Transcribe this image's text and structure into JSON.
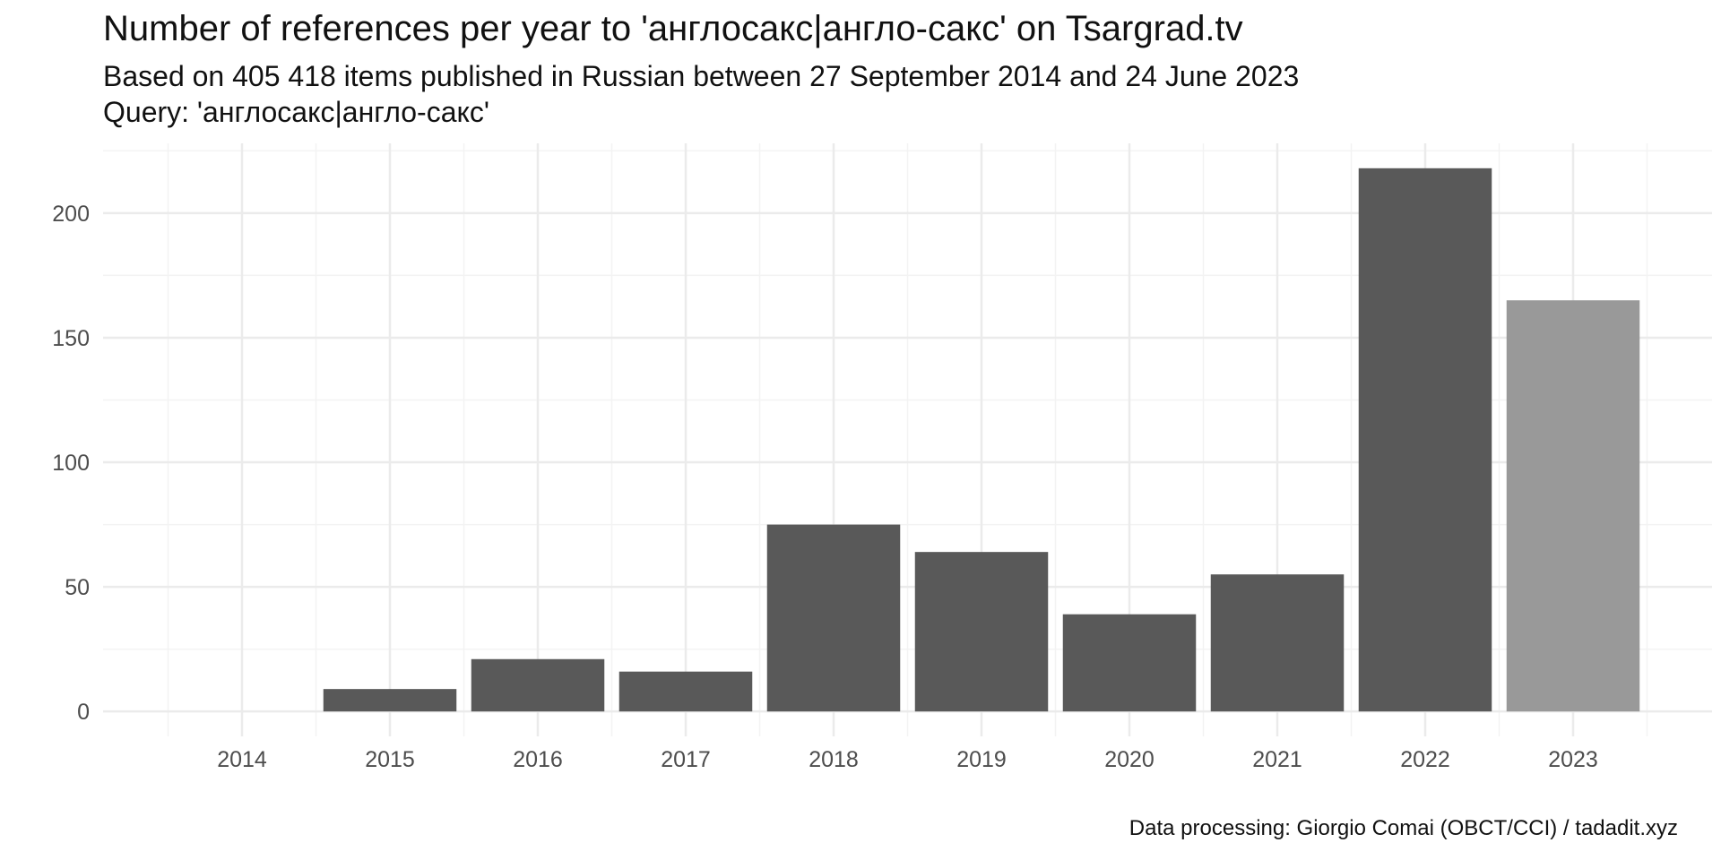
{
  "chart_data": {
    "type": "bar",
    "title": "Number of references per year to 'англосакс|англо-сакс' on Tsargrad.tv",
    "subtitle": [
      "Based on 405 418 items published in Russian between 27 September 2014 and 24 June 2023",
      "Query: 'англосакс|англо-сакс'"
    ],
    "caption": "Data processing: Giorgio Comai (OBCT/CCI) / tadadit.xyz",
    "xlabel": "",
    "ylabel": "",
    "categories": [
      "2014",
      "2015",
      "2016",
      "2017",
      "2018",
      "2019",
      "2020",
      "2021",
      "2022",
      "2023"
    ],
    "values": [
      0,
      9,
      21,
      16,
      75,
      64,
      39,
      55,
      218,
      165
    ],
    "yticks": [
      0,
      50,
      100,
      150,
      200
    ],
    "ylim": [
      -10,
      228
    ],
    "grid": true,
    "legend": "none",
    "colors": {
      "bar": "#595959",
      "bar_partial_year": "#999999",
      "grid_major": "#ebebeb",
      "grid_minor": "#f3f3f3",
      "tick_label": "#4d4d4d"
    },
    "partial_year_categories": [
      "2023"
    ]
  }
}
